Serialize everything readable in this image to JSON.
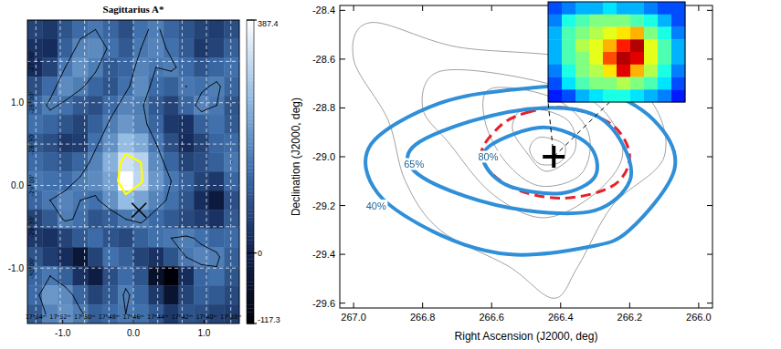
{
  "chart_data": [
    {
      "type": "heatmap",
      "title": "Sagittarius A*",
      "xlim": [
        -1.5,
        1.5
      ],
      "ylim": [
        -1.67,
        2.0
      ],
      "xticks": [
        {
          "value": -1,
          "label": "-1.0"
        },
        {
          "value": 0,
          "label": "0.0"
        },
        {
          "value": 1,
          "label": "1.0"
        }
      ],
      "yticks": [
        {
          "value": -1,
          "label": "-1.0"
        },
        {
          "value": 0,
          "label": "0.0"
        },
        {
          "value": 1,
          "label": "1.0"
        }
      ],
      "grid": true,
      "ra_grid": [
        {
          "value": -1.38,
          "label": "17ʰ54ᵐ"
        },
        {
          "value": -1.035,
          "label": "17ʰ52ᵐ"
        },
        {
          "value": -0.69,
          "label": "17ʰ50ᵐ"
        },
        {
          "value": -0.345,
          "label": "17ʰ48ᵐ"
        },
        {
          "value": 0,
          "label": "17ʰ46ᵐ"
        },
        {
          "value": 0.345,
          "label": "17ʰ44ᵐ"
        },
        {
          "value": 0.69,
          "label": "17ʰ42ᵐ"
        },
        {
          "value": 1.035,
          "label": "17ʰ40ᵐ"
        },
        {
          "value": 1.38,
          "label": "17ʰ38ᵐ"
        }
      ],
      "dec_grid": [
        {
          "value": 1.5,
          "label": "-27°30'"
        },
        {
          "value": 1.0,
          "label": "-28°00'"
        },
        {
          "value": 0.5,
          "label": "-28°30'"
        },
        {
          "value": 0,
          "label": "-29°00'"
        },
        {
          "value": -0.5,
          "label": "-29°30'"
        },
        {
          "value": -1.0,
          "label": "-30°00'"
        }
      ],
      "cells": [
        [
          60,
          40,
          90,
          130,
          150,
          120,
          80,
          140,
          160,
          120,
          90,
          60,
          50,
          80
        ],
        [
          30,
          20,
          110,
          170,
          180,
          140,
          100,
          150,
          170,
          140,
          100,
          40,
          60,
          110
        ],
        [
          20,
          60,
          150,
          190,
          160,
          100,
          120,
          170,
          150,
          160,
          130,
          90,
          120,
          140
        ],
        [
          80,
          130,
          180,
          160,
          120,
          90,
          140,
          180,
          130,
          110,
          150,
          140,
          160,
          120
        ],
        [
          120,
          160,
          140,
          100,
          80,
          130,
          170,
          160,
          100,
          60,
          120,
          170,
          150,
          90
        ],
        [
          140,
          120,
          90,
          60,
          110,
          160,
          200,
          170,
          120,
          40,
          30,
          110,
          140,
          100
        ],
        [
          100,
          80,
          40,
          50,
          140,
          190,
          260,
          230,
          150,
          80,
          20,
          60,
          120,
          130
        ],
        [
          130,
          110,
          90,
          120,
          170,
          240,
          330,
          300,
          180,
          120,
          60,
          80,
          110,
          150
        ],
        [
          150,
          140,
          130,
          160,
          180,
          220,
          387,
          310,
          200,
          150,
          110,
          60,
          40,
          120
        ],
        [
          120,
          150,
          170,
          150,
          140,
          190,
          260,
          220,
          170,
          140,
          90,
          20,
          -30,
          80
        ],
        [
          60,
          100,
          160,
          140,
          90,
          110,
          150,
          160,
          130,
          100,
          70,
          50,
          30,
          100
        ],
        [
          40,
          30,
          60,
          100,
          130,
          90,
          70,
          110,
          140,
          150,
          160,
          140,
          120,
          130
        ],
        [
          90,
          50,
          20,
          -40,
          60,
          140,
          110,
          60,
          30,
          90,
          150,
          170,
          160,
          110
        ],
        [
          120,
          150,
          110,
          30,
          -20,
          80,
          130,
          90,
          -60,
          -117,
          20,
          120,
          140,
          90
        ],
        [
          130,
          200,
          180,
          120,
          60,
          100,
          160,
          120,
          40,
          -50,
          60,
          110,
          100,
          70
        ],
        [
          100,
          170,
          190,
          160,
          110,
          130,
          150,
          140,
          100,
          40,
          90,
          80,
          60,
          50
        ]
      ],
      "color_range": [
        -117.3,
        387.4
      ],
      "color_ticks": [
        -117.3,
        0,
        387.4
      ],
      "contours": [
        {
          "level": 150,
          "color": "#000000"
        },
        {
          "level": 300,
          "color": "#ffff00"
        }
      ],
      "markers": [
        {
          "x": 0.08,
          "y": -0.3,
          "marker": "x"
        }
      ]
    },
    {
      "type": "contour",
      "xlabel": "Right Ascension (J2000, deg)",
      "ylabel": "Declination (J2000, deg)",
      "xlim": [
        267.04,
        265.96
      ],
      "ylim": [
        -29.62,
        -28.38
      ],
      "xticks": [
        {
          "value": 267,
          "label": "267.0"
        },
        266.8,
        266.6,
        266.4,
        266.2,
        {
          "value": 266,
          "label": "266.0"
        }
      ],
      "yticks": [
        -29.6,
        -29.4,
        -29.2,
        {
          "value": -29,
          "label": "-29.0"
        },
        -28.8,
        -28.6,
        -28.4
      ],
      "background_contours": {
        "color": "#777777",
        "curves": [
          {
            "x": [
              266.95,
              266.7,
              266.35,
              266.15,
              266.1,
              266.25,
              266.35,
              266.42,
              266.55,
              266.75,
              266.85,
              266.9,
              267.0
            ],
            "y": [
              -28.45,
              -28.55,
              -28.6,
              -28.75,
              -29.0,
              -29.2,
              -29.45,
              -29.58,
              -29.45,
              -29.3,
              -29.1,
              -28.85,
              -28.6
            ]
          },
          {
            "x": [
              266.75,
              266.5,
              266.3,
              266.22,
              266.3,
              266.45,
              266.6,
              266.72,
              266.8
            ],
            "y": [
              -28.65,
              -28.68,
              -28.78,
              -28.98,
              -29.15,
              -29.25,
              -29.15,
              -28.95,
              -28.8
            ]
          },
          {
            "x": [
              266.6,
              266.42,
              266.32,
              266.34,
              266.46,
              266.56,
              266.62
            ],
            "y": [
              -28.72,
              -28.76,
              -28.9,
              -29.07,
              -29.12,
              -29.02,
              -28.85
            ]
          },
          {
            "x": [
              266.5,
              266.38,
              266.36,
              266.44,
              266.5,
              266.54
            ],
            "y": [
              -28.8,
              -28.85,
              -28.98,
              -29.06,
              -28.98,
              -28.88
            ]
          },
          {
            "x": [
              266.46,
              266.39,
              266.4,
              266.46,
              266.49
            ],
            "y": [
              -28.92,
              -28.95,
              -29.02,
              -29.03,
              -28.97
            ]
          }
        ]
      },
      "series": [
        {
          "name": "40%",
          "color": "#2f8fd8",
          "x": [
            266.95,
            266.75,
            266.5,
            266.3,
            266.13,
            266.07,
            266.2,
            266.32,
            266.55,
            266.75,
            266.93
          ],
          "y": [
            -28.95,
            -28.78,
            -28.72,
            -28.72,
            -28.85,
            -29.05,
            -29.3,
            -29.37,
            -29.4,
            -29.32,
            -29.15
          ],
          "label_x": 266.935,
          "label_y": -29.2
        },
        {
          "name": "65%",
          "color": "#2f8fd8",
          "x": [
            266.82,
            266.65,
            266.45,
            266.3,
            266.22,
            266.2,
            266.3,
            266.5,
            266.7,
            266.83
          ],
          "y": [
            -28.95,
            -28.85,
            -28.8,
            -28.83,
            -28.95,
            -29.1,
            -29.22,
            -29.22,
            -29.15,
            -29.05
          ],
          "label_x": 266.825,
          "label_y": -29.03
        },
        {
          "name": "80%",
          "color": "#2f8fd8",
          "x": [
            266.6,
            266.45,
            266.32,
            266.3,
            266.4,
            266.55,
            266.62
          ],
          "y": [
            -28.95,
            -28.88,
            -28.95,
            -29.08,
            -29.15,
            -29.12,
            -29.03
          ],
          "label_x": 266.61,
          "label_y": -29.0
        }
      ],
      "region": {
        "color": "#e8202a",
        "line_style": "dashed",
        "x": [
          266.5,
          266.38,
          266.25,
          266.2,
          266.25,
          266.4,
          266.55,
          266.63,
          266.58
        ],
        "y": [
          -28.82,
          -28.8,
          -28.87,
          -29.0,
          -29.12,
          -29.17,
          -29.12,
          -29.0,
          -28.88
        ]
      },
      "markers": [
        {
          "x": 266.42,
          "y": -29.0,
          "marker": "plus"
        }
      ],
      "inset": {
        "clim": [
          0,
          1
        ],
        "cells": [
          [
            0.2,
            0.25,
            0.3,
            0.3,
            0.35,
            0.3,
            0.3,
            0.25,
            0.2,
            0.2
          ],
          [
            0.25,
            0.4,
            0.45,
            0.5,
            0.5,
            0.5,
            0.45,
            0.4,
            0.3,
            0.2
          ],
          [
            0.3,
            0.45,
            0.5,
            0.55,
            0.6,
            0.65,
            0.7,
            0.5,
            0.4,
            0.25
          ],
          [
            0.3,
            0.45,
            0.55,
            0.6,
            0.7,
            0.85,
            0.95,
            0.6,
            0.45,
            0.3
          ],
          [
            0.3,
            0.45,
            0.5,
            0.6,
            0.8,
            0.95,
            0.9,
            0.6,
            0.45,
            0.3
          ],
          [
            0.25,
            0.4,
            0.5,
            0.55,
            0.65,
            0.9,
            0.7,
            0.55,
            0.4,
            0.25
          ],
          [
            0.2,
            0.35,
            0.45,
            0.5,
            0.5,
            0.55,
            0.5,
            0.45,
            0.35,
            0.2
          ],
          [
            0.15,
            0.2,
            0.3,
            0.35,
            0.4,
            0.4,
            0.35,
            0.3,
            0.25,
            0.15
          ]
        ]
      }
    }
  ]
}
